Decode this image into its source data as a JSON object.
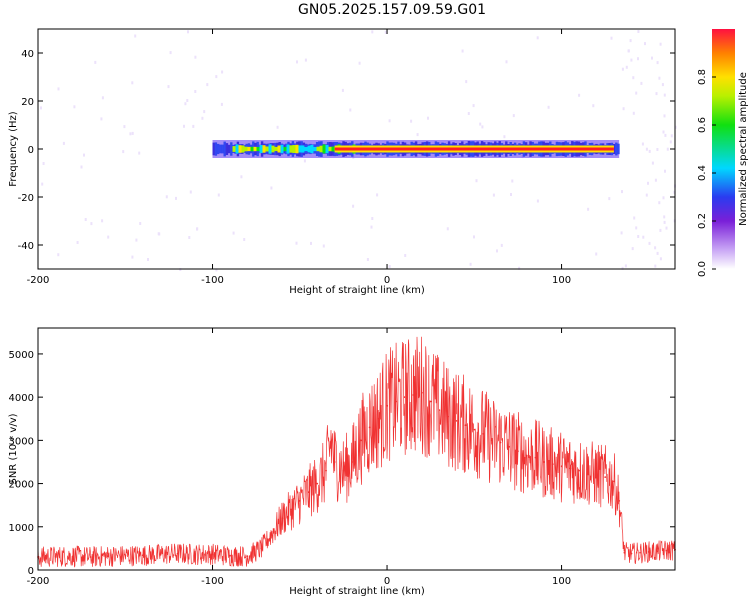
{
  "page": {
    "title": "GN05.2025.157.09.59.G01"
  },
  "colors": {
    "background": "#ffffff",
    "axes": "#000000",
    "snr_line": "#f03232",
    "spectrogram_low": "#7a1fd8",
    "spectrogram_ridge": "#ff2020"
  },
  "chart_data": [
    {
      "type": "heatmap",
      "title": "",
      "xlabel": "Height of straight line (km)",
      "ylabel": "Frequency (Hz)",
      "xlim": [
        -200,
        165
      ],
      "ylim": [
        -50,
        50
      ],
      "xticks": [
        "-200",
        "-100",
        "0",
        "100"
      ],
      "yticks": [
        "-40",
        "-20",
        "0",
        "20",
        "40"
      ],
      "grid": false,
      "colorbar": {
        "label": "Normalized spectral amplitude",
        "range": [
          0,
          1
        ],
        "ticks": [
          "0.0",
          "0.2",
          "0.4",
          "0.6",
          "0.8"
        ],
        "colormap": "rainbow (white → violet → blue → cyan → green → yellow → red)"
      },
      "regions": [
        {
          "x_range": [
            -200,
            -72
          ],
          "content": "broadband noise, amplitude ~0.05–0.2, full frequency span"
        },
        {
          "x_range": [
            -72,
            133
          ],
          "content": "signal ridge near 0 Hz, amplitude up to 1.0; sparse near-white speckle elsewhere"
        },
        {
          "x_range": [
            133,
            165
          ],
          "content": "broadband noise, amplitude ~0.05–0.2, full frequency span"
        }
      ],
      "ridge": {
        "center_frequency_hz": 0,
        "x_range": [
          -100,
          133
        ],
        "peak_segment_x_range": [
          -30,
          130
        ]
      }
    },
    {
      "type": "line",
      "title": "",
      "xlabel": "Height of straight line (km)",
      "ylabel": "SNR (10 * v/v)",
      "xlim": [
        -200,
        165
      ],
      "ylim": [
        0,
        5600
      ],
      "xticks": [
        "-200",
        "-100",
        "0",
        "100"
      ],
      "yticks": [
        "0",
        "1000",
        "2000",
        "3000",
        "4000",
        "5000"
      ],
      "grid": false,
      "series": [
        {
          "color": "#f03232",
          "x": [
            -200,
            -190,
            -180,
            -170,
            -160,
            -150,
            -140,
            -130,
            -120,
            -110,
            -100,
            -90,
            -80,
            -72,
            -65,
            -60,
            -55,
            -50,
            -45,
            -40,
            -35,
            -32,
            -30,
            -25,
            -20,
            -15,
            -10,
            -5,
            0,
            5,
            10,
            15,
            20,
            25,
            30,
            35,
            40,
            45,
            50,
            55,
            60,
            65,
            70,
            75,
            80,
            85,
            90,
            95,
            100,
            105,
            110,
            115,
            120,
            125,
            130,
            133,
            136,
            140,
            145,
            150,
            155,
            160,
            165
          ],
          "y": [
            300,
            310,
            320,
            300,
            320,
            330,
            340,
            360,
            380,
            360,
            370,
            330,
            320,
            500,
            900,
            1200,
            1400,
            1600,
            1800,
            2000,
            2300,
            3000,
            2500,
            2300,
            2500,
            3000,
            3300,
            3500,
            3800,
            3900,
            4000,
            4050,
            4100,
            3900,
            3700,
            3550,
            3450,
            3350,
            3250,
            3150,
            3000,
            2950,
            2850,
            2750,
            2650,
            2600,
            2500,
            2450,
            2400,
            2350,
            2300,
            2250,
            2200,
            2150,
            2050,
            1600,
            400,
            380,
            400,
            420,
            430,
            450,
            470
          ]
        }
      ]
    }
  ]
}
